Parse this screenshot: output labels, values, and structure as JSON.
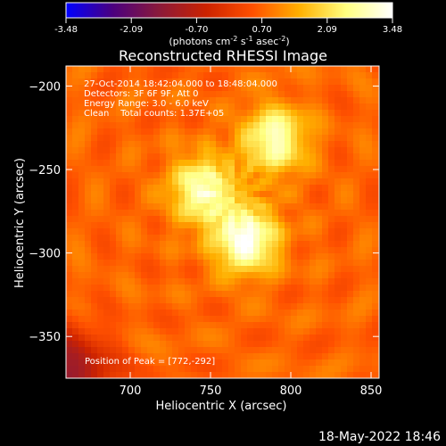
{
  "chart_data": {
    "type": "heatmap",
    "title": "Reconstructed RHESSI Image",
    "xlabel": "Heliocentric X (arcsec)",
    "ylabel": "Heliocentric Y (arcsec)",
    "xlim": [
      660,
      855
    ],
    "ylim": [
      -375,
      -188
    ],
    "x_ticks": [
      700,
      750,
      800,
      850
    ],
    "y_ticks": [
      -200,
      -250,
      -300,
      -350
    ],
    "colorbar": {
      "min": -3.48,
      "max": 3.48,
      "ticks": [
        "-3.48",
        "-2.09",
        "-0.70",
        "0.70",
        "2.09",
        "3.48"
      ],
      "colormap": [
        "#0000ff",
        "#4b007f",
        "#8b1a3a",
        "#cc2200",
        "#ff5000",
        "#ffb000",
        "#ffff80",
        "#ffffff"
      ]
    },
    "sources": [
      {
        "x": 790,
        "y": -232,
        "peak": 3.0
      },
      {
        "x": 745,
        "y": -262,
        "peak": 3.0
      },
      {
        "x": 772,
        "y": -292,
        "peak": 3.48
      }
    ],
    "background_level": 0.7,
    "annotations": [
      "27-Oct-2014 18:42:04.000 to 18:48:04.000",
      "Detectors: 3F 6F 9F, Att 0",
      "Energy Range: 3.0 - 6.0 keV",
      "Clean    Total counts: 1.37E+05"
    ],
    "peak_label": "Position of Peak = [772,-292]"
  },
  "colorbar_units": {
    "prefix": "(photons cm",
    "exp1": "-2",
    "mid1": " s",
    "exp2": "-1",
    "mid2": " asec",
    "exp3": "-2",
    "suffix": ")"
  },
  "timestamp": "18-May-2022 18:46"
}
